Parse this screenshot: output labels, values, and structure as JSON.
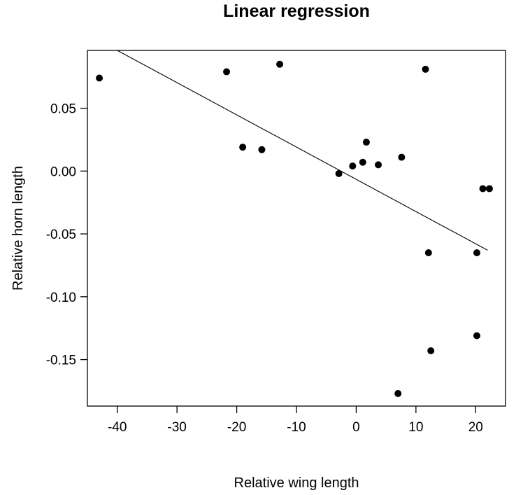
{
  "chart_data": {
    "type": "scatter",
    "title": "Linear regression",
    "xlabel": "Relative wing length",
    "ylabel": "Relative horn length",
    "xlim": [
      -45,
      25
    ],
    "ylim": [
      -0.187,
      0.096
    ],
    "xticks": [
      -40,
      -30,
      -20,
      -10,
      0,
      10,
      20
    ],
    "xtick_labels": [
      "-40",
      "-30",
      "-20",
      "-10",
      "0",
      "10",
      "20"
    ],
    "yticks": [
      0.05,
      0.0,
      -0.05,
      -0.1,
      -0.15
    ],
    "ytick_labels": [
      "0.05",
      "0.00",
      "-0.05",
      "-0.10",
      "-0.15"
    ],
    "grid": false,
    "points": [
      {
        "x": -43.0,
        "y": 0.074
      },
      {
        "x": -21.7,
        "y": 0.079
      },
      {
        "x": -12.8,
        "y": 0.085
      },
      {
        "x": -19.0,
        "y": 0.019
      },
      {
        "x": -15.8,
        "y": 0.017
      },
      {
        "x": -2.9,
        "y": -0.002
      },
      {
        "x": -0.6,
        "y": 0.004
      },
      {
        "x": 1.1,
        "y": 0.007
      },
      {
        "x": 1.7,
        "y": 0.023
      },
      {
        "x": 3.7,
        "y": 0.005
      },
      {
        "x": 7.6,
        "y": 0.011
      },
      {
        "x": 11.6,
        "y": 0.081
      },
      {
        "x": 21.2,
        "y": -0.014
      },
      {
        "x": 22.3,
        "y": -0.014
      },
      {
        "x": 12.1,
        "y": -0.065
      },
      {
        "x": 20.2,
        "y": -0.065
      },
      {
        "x": 20.2,
        "y": -0.131
      },
      {
        "x": 12.5,
        "y": -0.143
      },
      {
        "x": 7.0,
        "y": -0.177
      }
    ],
    "regression_line": {
      "x": [
        -40.0,
        22.0
      ],
      "y": [
        0.096,
        -0.063
      ]
    }
  }
}
